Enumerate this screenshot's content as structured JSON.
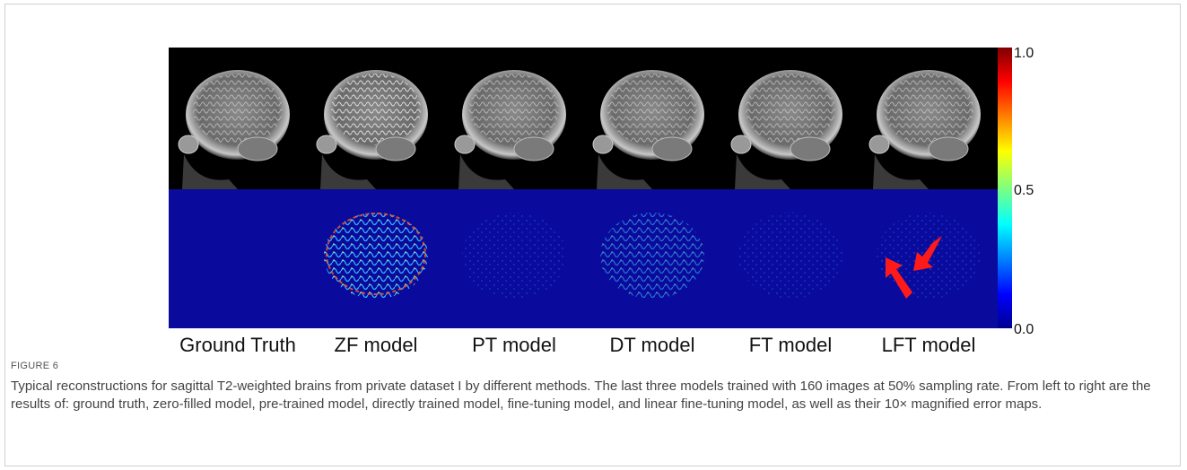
{
  "figure": {
    "panel_labels": [
      "Ground Truth",
      "ZF model",
      "PT model",
      "DT model",
      "FT model",
      "LFT model"
    ],
    "colorbar_ticks": [
      "1.0",
      "0.5",
      "0.0"
    ],
    "figure_label": "FIGURE 6",
    "caption": "Typical reconstructions for sagittal T2-weighted brains from private dataset I by different methods. The last three models trained with 160 images at 50% sampling rate. From left to right are the results of: ground truth, zero-filled model, pre-trained model, directly trained model, fine-tuning model, and linear fine-tuning model, as well as their 10× magnified error maps."
  }
}
